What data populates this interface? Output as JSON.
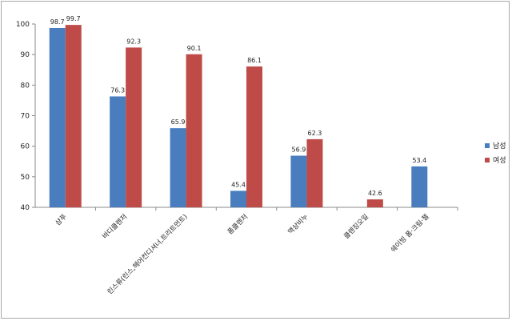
{
  "chart_data": {
    "type": "bar",
    "categories": [
      "샴푸",
      "바디클렌저",
      "린스류(린스,헤어컨디셔너,트리트먼트)",
      "폼클렌저",
      "액상비누",
      "클렌징오일",
      "쉐이빙 폼·크림·젤"
    ],
    "series": [
      {
        "name": "남성",
        "values": [
          98.7,
          76.3,
          65.9,
          45.4,
          56.9,
          null,
          53.4
        ]
      },
      {
        "name": "여성",
        "values": [
          99.7,
          92.3,
          90.1,
          86.1,
          62.3,
          42.6,
          null
        ]
      }
    ],
    "data_labels": [
      [
        "98.7",
        "76.3",
        "65.9",
        "45.4",
        "56.9",
        null,
        "53.4"
      ],
      [
        "99.7",
        "92.3",
        "90.1",
        "86.1",
        "62.3",
        "42.6",
        null
      ]
    ],
    "yticks": [
      "40",
      "50",
      "60",
      "70",
      "80",
      "90",
      "100"
    ],
    "ylim": [
      40,
      100
    ],
    "grid": false,
    "legend_position": "right",
    "colors": [
      "#4a7dbe",
      "#be4b48"
    ],
    "title": "",
    "xlabel": "",
    "ylabel": ""
  }
}
